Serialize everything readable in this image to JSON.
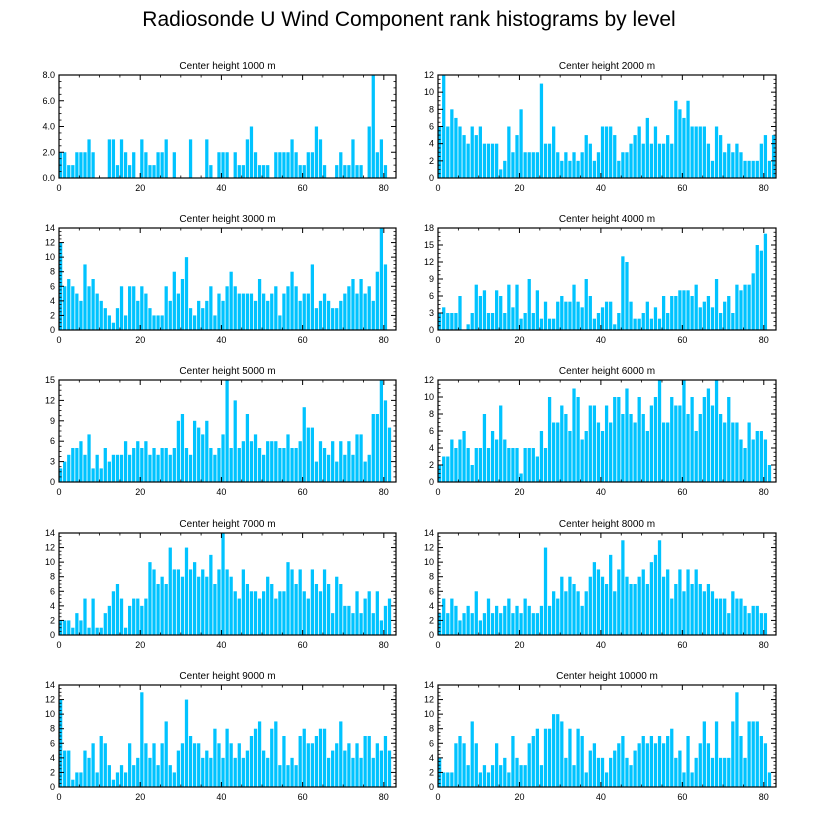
{
  "title": "Radiosonde U Wind Component rank histograms by level",
  "colors": {
    "bar": "#00c3ff",
    "axis": "#000000",
    "background": "#ffffff"
  },
  "chart_data": [
    {
      "type": "bar",
      "title": "Center height 1000 m",
      "xlim": [
        0,
        83
      ],
      "ylim": [
        0,
        8
      ],
      "yticks": [
        "0.0",
        "2.0",
        "4.0",
        "6.0",
        "8.0"
      ],
      "xticks": [
        "0",
        "20",
        "40",
        "60",
        "80"
      ],
      "values": [
        2,
        2,
        1,
        1,
        2,
        2,
        2,
        3,
        2,
        0,
        0,
        0,
        3,
        3,
        1,
        3,
        2,
        1,
        2,
        0,
        3,
        2,
        1,
        1,
        2,
        2,
        3,
        0,
        2,
        0,
        0,
        0,
        3,
        0,
        0,
        0,
        3,
        1,
        0,
        2,
        2,
        2,
        0,
        2,
        1,
        1,
        3,
        4,
        2,
        1,
        1,
        1,
        0,
        2,
        2,
        2,
        2,
        3,
        2,
        1,
        1,
        2,
        2,
        4,
        3,
        1,
        0,
        0,
        1,
        2,
        1,
        1,
        3,
        1,
        1,
        0,
        4,
        8,
        2,
        3,
        1
      ]
    },
    {
      "type": "bar",
      "title": "Center height 2000 m",
      "xlim": [
        0,
        83
      ],
      "ylim": [
        0,
        12
      ],
      "yticks": [
        "0",
        "2",
        "4",
        "6",
        "8",
        "10",
        "12"
      ],
      "xticks": [
        "0",
        "20",
        "40",
        "60",
        "80"
      ],
      "values": [
        6,
        12,
        6,
        8,
        7,
        6,
        5,
        4,
        6,
        5,
        6,
        4,
        4,
        4,
        4,
        1,
        2,
        6,
        3,
        5,
        8,
        3,
        3,
        3,
        3,
        11,
        4,
        4,
        6,
        3,
        2,
        3,
        2,
        3,
        2,
        3,
        5,
        4,
        2,
        3,
        6,
        6,
        6,
        5,
        2,
        3,
        3,
        4,
        5,
        6,
        4,
        7,
        4,
        6,
        4,
        4,
        5,
        4,
        9,
        8,
        7,
        9,
        6,
        6,
        6,
        6,
        4,
        2,
        6,
        5,
        3,
        4,
        3,
        4,
        3,
        2,
        2,
        2,
        2,
        4,
        5,
        2,
        5
      ]
    },
    {
      "type": "bar",
      "title": "Center height 3000 m",
      "xlim": [
        0,
        83
      ],
      "ylim": [
        0,
        14
      ],
      "yticks": [
        "0",
        "2",
        "4",
        "6",
        "8",
        "10",
        "12",
        "14"
      ],
      "xticks": [
        "0",
        "20",
        "40",
        "60",
        "80"
      ],
      "values": [
        12,
        6,
        7,
        6,
        5,
        4,
        9,
        6,
        7,
        5,
        4,
        3,
        2,
        1,
        3,
        6,
        2,
        6,
        6,
        4,
        6,
        5,
        3,
        2,
        2,
        2,
        6,
        4,
        8,
        5,
        7,
        10,
        3,
        2,
        4,
        3,
        4,
        6,
        2,
        5,
        4,
        6,
        8,
        6,
        5,
        5,
        5,
        5,
        4,
        7,
        5,
        4,
        5,
        6,
        2,
        5,
        6,
        8,
        6,
        4,
        5,
        5,
        9,
        3,
        4,
        5,
        4,
        3,
        3,
        4,
        5,
        6,
        7,
        5,
        7,
        5,
        6,
        4,
        8,
        14,
        9
      ]
    },
    {
      "type": "bar",
      "title": "Center height 4000 m",
      "xlim": [
        0,
        83
      ],
      "ylim": [
        0,
        18
      ],
      "yticks": [
        "0",
        "3",
        "6",
        "9",
        "12",
        "15",
        "18"
      ],
      "xticks": [
        "0",
        "20",
        "40",
        "60",
        "80"
      ],
      "values": [
        3,
        4,
        3,
        3,
        3,
        6,
        0,
        1,
        3,
        8,
        6,
        7,
        3,
        3,
        7,
        6,
        3,
        8,
        4,
        8,
        2,
        3,
        9,
        3,
        7,
        2,
        5,
        2,
        2,
        5,
        6,
        5,
        5,
        8,
        5,
        4,
        9,
        6,
        2,
        3,
        4,
        5,
        5,
        1,
        3,
        13,
        12,
        5,
        2,
        2,
        3,
        5,
        2,
        4,
        2,
        6,
        3,
        6,
        6,
        7,
        7,
        7,
        6,
        8,
        4,
        5,
        6,
        4,
        9,
        3,
        5,
        6,
        3,
        8,
        7,
        8,
        8,
        10,
        15,
        14,
        17
      ]
    },
    {
      "type": "bar",
      "title": "Center height 5000 m",
      "xlim": [
        0,
        83
      ],
      "ylim": [
        0,
        15
      ],
      "yticks": [
        "0",
        "3",
        "6",
        "9",
        "12",
        "15"
      ],
      "xticks": [
        "0",
        "20",
        "40",
        "60",
        "80"
      ],
      "values": [
        2,
        3,
        4,
        5,
        5,
        6,
        4,
        7,
        2,
        4,
        2,
        5,
        3,
        4,
        4,
        4,
        6,
        4,
        5,
        6,
        5,
        6,
        4,
        5,
        4,
        5,
        5,
        4,
        5,
        9,
        10,
        5,
        4,
        9,
        8,
        7,
        9,
        5,
        4,
        5,
        7,
        15,
        5,
        12,
        5,
        6,
        10,
        6,
        7,
        5,
        4,
        6,
        6,
        6,
        5,
        5,
        7,
        5,
        5,
        6,
        11,
        8,
        8,
        3,
        6,
        5,
        4,
        6,
        3,
        6,
        4,
        6,
        4,
        7,
        7,
        3,
        4,
        10,
        10,
        15,
        12,
        8
      ]
    },
    {
      "type": "bar",
      "title": "Center height 6000 m",
      "xlim": [
        0,
        83
      ],
      "ylim": [
        0,
        12
      ],
      "yticks": [
        "0",
        "2",
        "4",
        "6",
        "8",
        "10",
        "12"
      ],
      "xticks": [
        "0",
        "20",
        "40",
        "60",
        "80"
      ],
      "values": [
        2,
        3,
        3,
        5,
        4,
        5,
        6,
        4,
        2,
        4,
        4,
        8,
        4,
        6,
        5,
        9,
        5,
        4,
        4,
        4,
        1,
        4,
        4,
        4,
        3,
        6,
        4,
        10,
        7,
        7,
        9,
        8,
        6,
        11,
        10,
        5,
        6,
        9,
        9,
        7,
        6,
        9,
        7,
        10,
        10,
        8,
        11,
        8,
        7,
        10,
        8,
        6,
        9,
        10,
        12,
        7,
        7,
        10,
        9,
        9,
        12,
        8,
        10,
        6,
        8,
        10,
        11,
        9,
        12,
        8,
        7,
        10,
        7,
        7,
        5,
        4,
        7,
        5,
        6,
        6,
        5,
        2
      ]
    },
    {
      "type": "bar",
      "title": "Center height 7000 m",
      "xlim": [
        0,
        83
      ],
      "ylim": [
        0,
        14
      ],
      "yticks": [
        "0",
        "2",
        "4",
        "6",
        "8",
        "10",
        "12",
        "14"
      ],
      "xticks": [
        "0",
        "20",
        "40",
        "60",
        "80"
      ],
      "values": [
        2,
        2,
        2,
        1,
        3,
        2,
        5,
        1,
        5,
        1,
        1,
        3,
        4,
        6,
        7,
        5,
        1,
        4,
        5,
        5,
        4,
        5,
        10,
        9,
        7,
        8,
        7,
        12,
        9,
        9,
        8,
        12,
        9,
        10,
        8,
        9,
        8,
        11,
        7,
        9,
        14,
        9,
        8,
        6,
        5,
        9,
        7,
        6,
        6,
        5,
        6,
        8,
        7,
        5,
        6,
        6,
        10,
        9,
        7,
        9,
        6,
        5,
        9,
        7,
        6,
        9,
        7,
        3,
        8,
        7,
        4,
        4,
        3,
        6,
        3,
        5,
        6,
        3,
        6,
        2,
        4,
        5
      ]
    },
    {
      "type": "bar",
      "title": "Center height 8000 m",
      "xlim": [
        0,
        83
      ],
      "ylim": [
        0,
        14
      ],
      "yticks": [
        "0",
        "2",
        "4",
        "6",
        "8",
        "10",
        "12",
        "14"
      ],
      "xticks": [
        "0",
        "20",
        "40",
        "60",
        "80"
      ],
      "values": [
        3,
        5,
        3,
        5,
        4,
        2,
        3,
        4,
        3,
        6,
        2,
        3,
        5,
        3,
        4,
        3,
        4,
        5,
        3,
        4,
        3,
        5,
        4,
        3,
        3,
        4,
        12,
        4,
        6,
        5,
        8,
        6,
        8,
        7,
        6,
        4,
        6,
        8,
        10,
        9,
        8,
        7,
        11,
        6,
        9,
        13,
        8,
        7,
        7,
        8,
        9,
        7,
        10,
        11,
        13,
        8,
        9,
        5,
        7,
        9,
        6,
        9,
        7,
        9,
        7,
        6,
        7,
        6,
        5,
        5,
        5,
        3,
        6,
        5,
        5,
        4,
        3,
        4,
        4,
        3,
        3
      ]
    },
    {
      "type": "bar",
      "title": "Center height 9000 m",
      "xlim": [
        0,
        83
      ],
      "ylim": [
        0,
        14
      ],
      "yticks": [
        "0",
        "2",
        "4",
        "6",
        "8",
        "10",
        "12",
        "14"
      ],
      "xticks": [
        "0",
        "20",
        "40",
        "60",
        "80"
      ],
      "values": [
        12,
        5,
        5,
        1,
        2,
        2,
        5,
        4,
        6,
        2,
        7,
        6,
        3,
        1,
        2,
        3,
        2,
        6,
        3,
        4,
        13,
        6,
        4,
        6,
        3,
        6,
        9,
        3,
        2,
        5,
        6,
        12,
        7,
        6,
        6,
        4,
        5,
        4,
        8,
        6,
        4,
        8,
        6,
        4,
        6,
        4,
        5,
        7,
        8,
        9,
        5,
        4,
        8,
        9,
        3,
        7,
        3,
        4,
        3,
        7,
        8,
        6,
        6,
        7,
        8,
        8,
        4,
        5,
        6,
        9,
        5,
        6,
        4,
        6,
        4,
        7,
        7,
        4,
        6,
        5,
        7,
        5
      ]
    },
    {
      "type": "bar",
      "title": "Center height 10000 m",
      "xlim": [
        0,
        83
      ],
      "ylim": [
        0,
        14
      ],
      "yticks": [
        "0",
        "2",
        "4",
        "6",
        "8",
        "10",
        "12",
        "14"
      ],
      "xticks": [
        "0",
        "20",
        "40",
        "60",
        "80"
      ],
      "values": [
        4,
        2,
        2,
        2,
        6,
        7,
        6,
        3,
        9,
        6,
        2,
        3,
        2,
        3,
        6,
        3,
        4,
        2,
        7,
        4,
        3,
        3,
        6,
        7,
        8,
        3,
        8,
        8,
        10,
        10,
        9,
        4,
        8,
        3,
        8,
        7,
        2,
        5,
        6,
        4,
        4,
        2,
        4,
        5,
        6,
        7,
        4,
        3,
        5,
        6,
        7,
        6,
        7,
        6,
        7,
        6,
        7,
        8,
        4,
        5,
        2,
        7,
        2,
        4,
        6,
        9,
        6,
        4,
        9,
        4,
        4,
        4,
        9,
        13,
        7,
        4,
        9,
        9,
        9,
        7,
        6,
        2
      ]
    }
  ]
}
